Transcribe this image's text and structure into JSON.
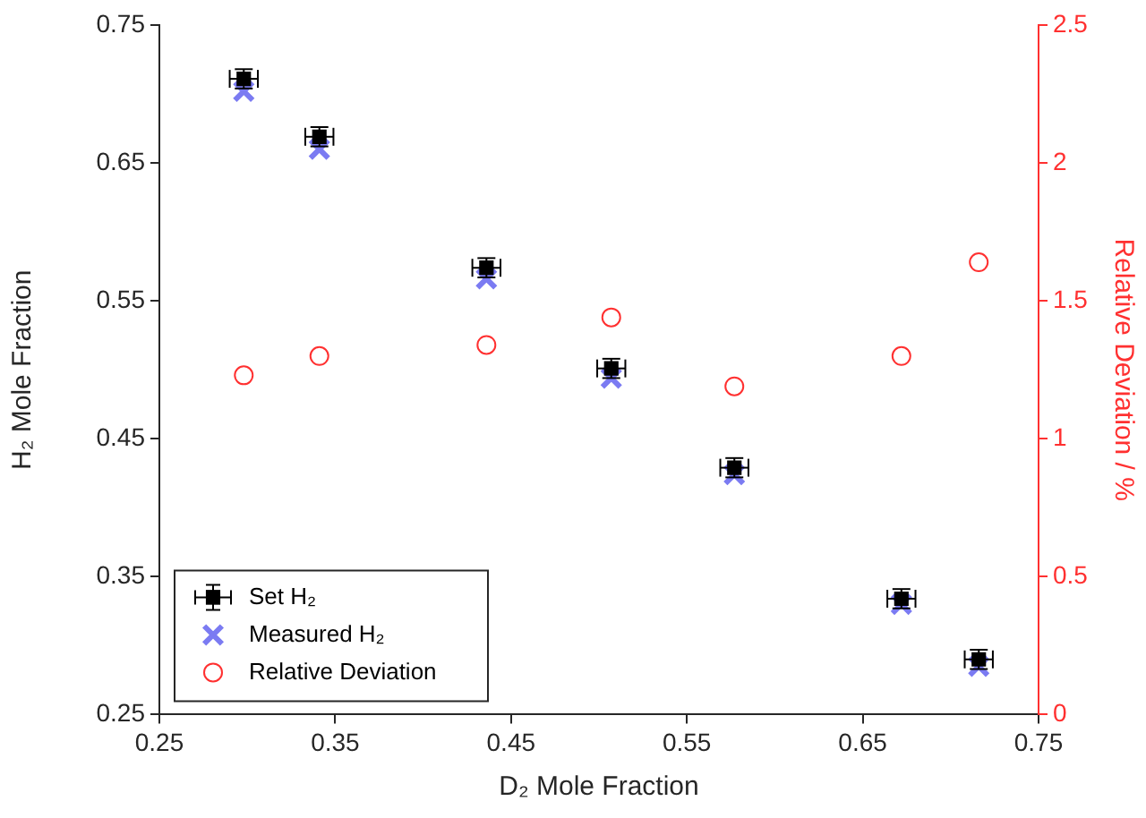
{
  "chart_data": {
    "type": "scatter",
    "xlabel": "D₂ Mole Fraction",
    "ylabel": "H₂ Mole Fraction",
    "y2label": "Relative Deviation / %",
    "xlim": [
      0.25,
      0.75
    ],
    "xticks": [
      0.25,
      0.35,
      0.45,
      0.55,
      0.65,
      0.75
    ],
    "ylim": [
      0.25,
      0.75
    ],
    "yticks": [
      0.25,
      0.35,
      0.45,
      0.55,
      0.65,
      0.75
    ],
    "y2lim": [
      0,
      2.5
    ],
    "y2ticks": [
      0,
      0.5,
      1,
      1.5,
      2,
      2.5
    ],
    "grid": false,
    "legend": "bottom left",
    "series": [
      {
        "name": "Set H₂",
        "color": "#000000",
        "marker": "square",
        "x": [
          0.298,
          0.341,
          0.436,
          0.507,
          0.577,
          0.672,
          0.716
        ],
        "values": [
          0.711,
          0.669,
          0.574,
          0.501,
          0.429,
          0.334,
          0.29
        ],
        "errors": [
          0.007,
          0.007,
          0.007,
          0.007,
          0.007,
          0.007,
          0.007
        ],
        "xerrors": [
          0.008,
          0.008,
          0.008,
          0.008,
          0.008,
          0.008,
          0.008
        ]
      },
      {
        "name": "Measured H₂",
        "color": "#7b7bf2",
        "marker": "cross",
        "x": [
          0.298,
          0.341,
          0.436,
          0.507,
          0.577,
          0.672,
          0.716
        ],
        "values": [
          0.702,
          0.66,
          0.566,
          0.494,
          0.424,
          0.33,
          0.285
        ]
      },
      {
        "name": "Relative Deviation",
        "color": "#ff3030",
        "marker": "circle",
        "axis": "y2",
        "x": [
          0.298,
          0.341,
          0.436,
          0.507,
          0.577,
          0.672,
          0.716
        ],
        "values": [
          1.23,
          1.3,
          1.34,
          1.44,
          1.19,
          1.3,
          1.64
        ]
      }
    ]
  }
}
